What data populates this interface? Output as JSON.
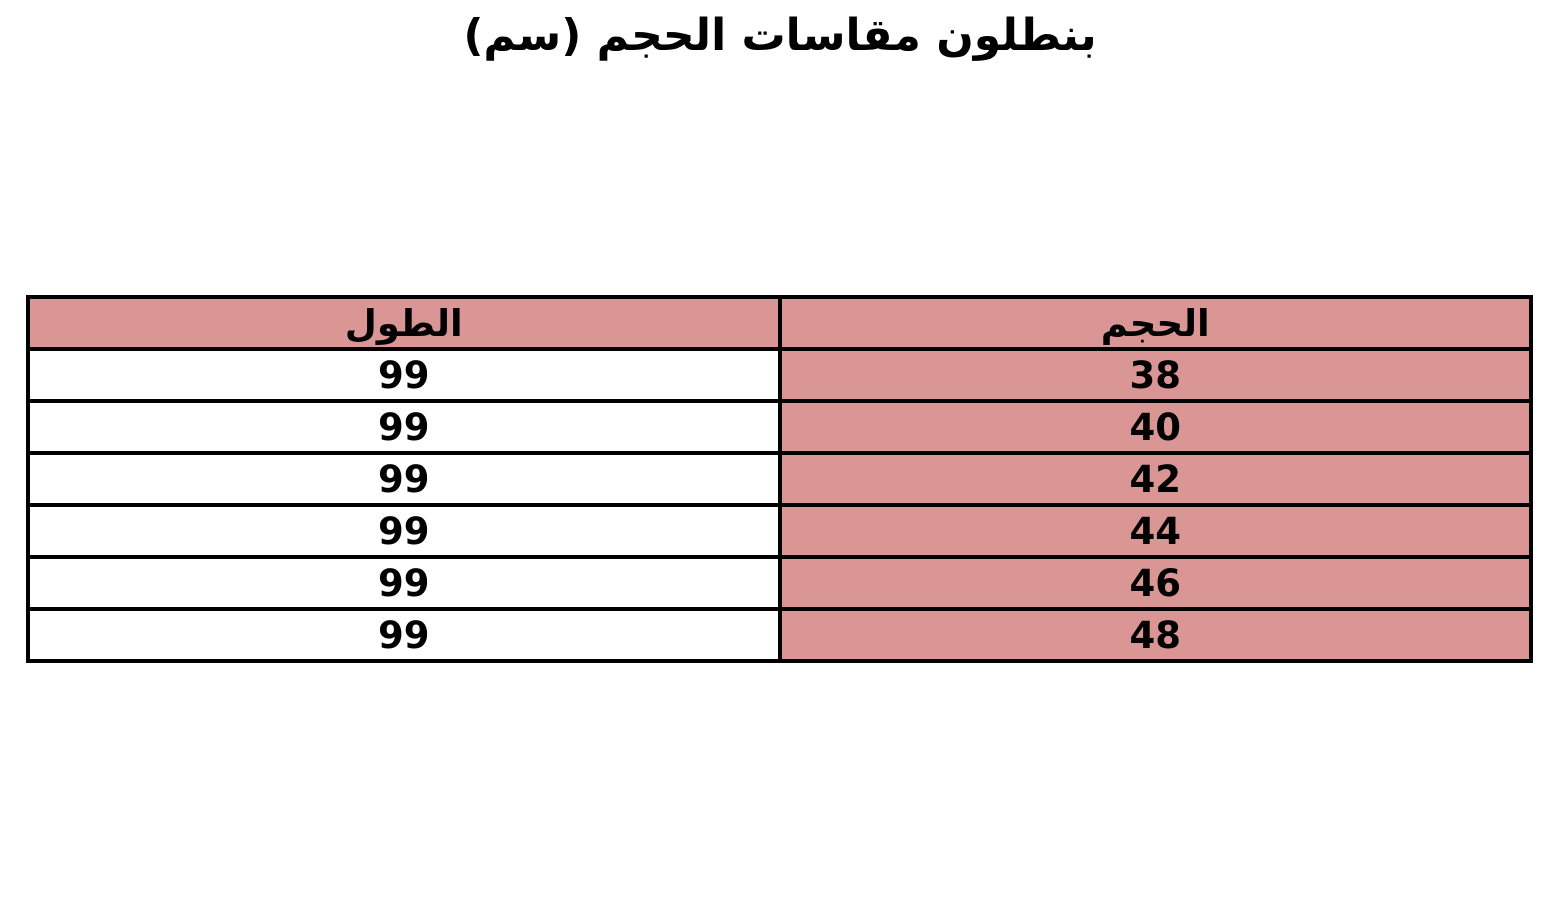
{
  "page": {
    "title": "بنطلون مقاسات الحجم (سم)"
  },
  "table": {
    "columns": [
      {
        "key": "size",
        "label": "الحجم"
      },
      {
        "key": "length",
        "label": "الطول"
      }
    ],
    "rows": [
      {
        "size": "38",
        "length": "99"
      },
      {
        "size": "40",
        "length": "99"
      },
      {
        "size": "42",
        "length": "99"
      },
      {
        "size": "44",
        "length": "99"
      },
      {
        "size": "46",
        "length": "99"
      },
      {
        "size": "48",
        "length": "99"
      }
    ]
  },
  "colors": {
    "header_bg": "#DA9694",
    "size_column_bg": "#DA9694",
    "length_column_bg": "#FFFFFF",
    "border": "#000000",
    "text": "#000000",
    "page_bg": "#FFFFFF"
  },
  "chart_data": {
    "type": "table",
    "title": "بنطلون مقاسات الحجم (سم)",
    "columns": [
      "الحجم",
      "الطول"
    ],
    "rows": [
      [
        38,
        99
      ],
      [
        40,
        99
      ],
      [
        42,
        99
      ],
      [
        44,
        99
      ],
      [
        46,
        99
      ],
      [
        48,
        99
      ]
    ],
    "layout": "RTL, size column (الحجم) on the right with pink fill, length column (الطول) on the left with white fill, header row pink"
  }
}
